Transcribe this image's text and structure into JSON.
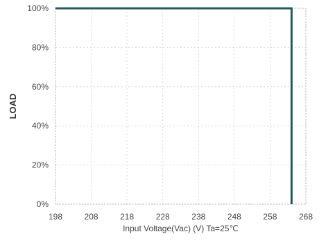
{
  "chart_data": {
    "type": "line",
    "xlabel": "Input Voltage(Vac) (V) Ta=25℃",
    "ylabel": "LOAD",
    "xlim": [
      198,
      268
    ],
    "ylim": [
      0,
      100
    ],
    "x_ticks": [
      198,
      208,
      218,
      228,
      238,
      248,
      258,
      268
    ],
    "y_ticks": [
      "0%",
      "20%",
      "40%",
      "60%",
      "80%",
      "100%"
    ],
    "y_tick_values": [
      0,
      20,
      40,
      60,
      80,
      100
    ],
    "grid": true,
    "series": [
      {
        "x": [
          198,
          264,
          264
        ],
        "y": [
          100,
          100,
          0
        ]
      }
    ],
    "colors": {
      "line": "#1f5c5a",
      "grid": "#d0d0d0",
      "frame": "#b8b8b8"
    }
  }
}
